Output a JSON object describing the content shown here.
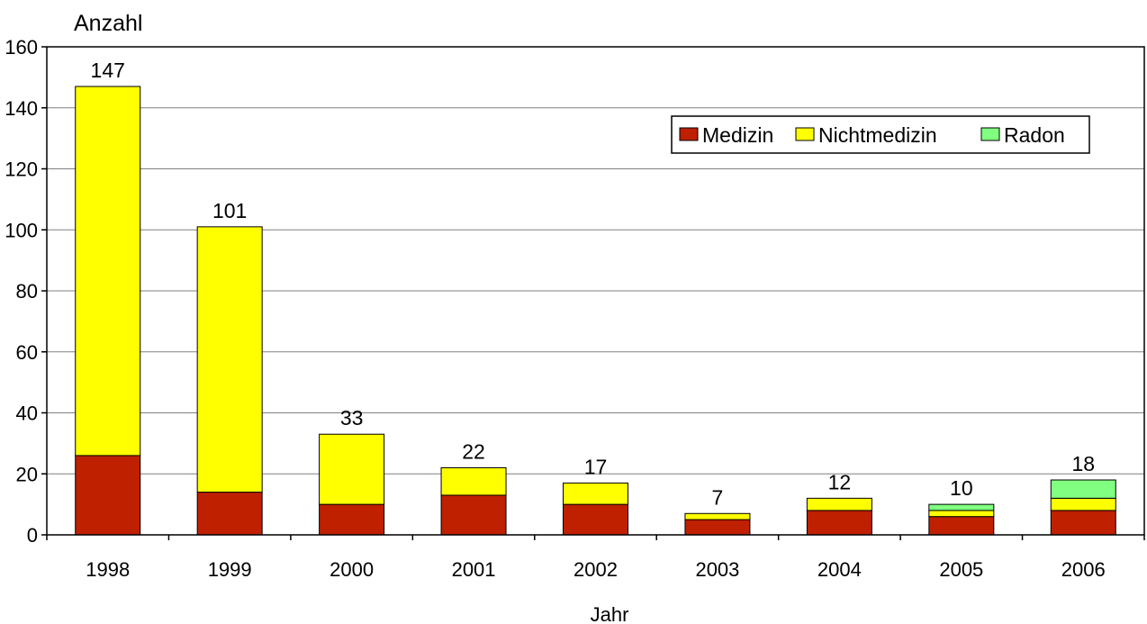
{
  "chart_data": {
    "type": "bar",
    "stacked": true,
    "title": "",
    "ylabel": "Anzahl",
    "xlabel": "Jahr",
    "ylim": [
      0,
      160
    ],
    "yticks": [
      0,
      20,
      40,
      60,
      80,
      100,
      120,
      140,
      160
    ],
    "grid": true,
    "legend_position": "top-right",
    "categories": [
      "1998",
      "1999",
      "2000",
      "2001",
      "2002",
      "2003",
      "2004",
      "2005",
      "2006"
    ],
    "totals": [
      147,
      101,
      33,
      22,
      17,
      7,
      12,
      10,
      18
    ],
    "series": [
      {
        "name": "Medizin",
        "color": "#bf2000",
        "values": [
          26,
          14,
          10,
          13,
          10,
          5,
          8,
          6,
          8
        ]
      },
      {
        "name": "Nichtmedizin",
        "color": "#ffff00",
        "values": [
          121,
          87,
          23,
          9,
          7,
          2,
          4,
          2,
          4
        ]
      },
      {
        "name": "Radon",
        "color": "#80ff80",
        "values": [
          0,
          0,
          0,
          0,
          0,
          0,
          0,
          2,
          6
        ]
      }
    ]
  }
}
